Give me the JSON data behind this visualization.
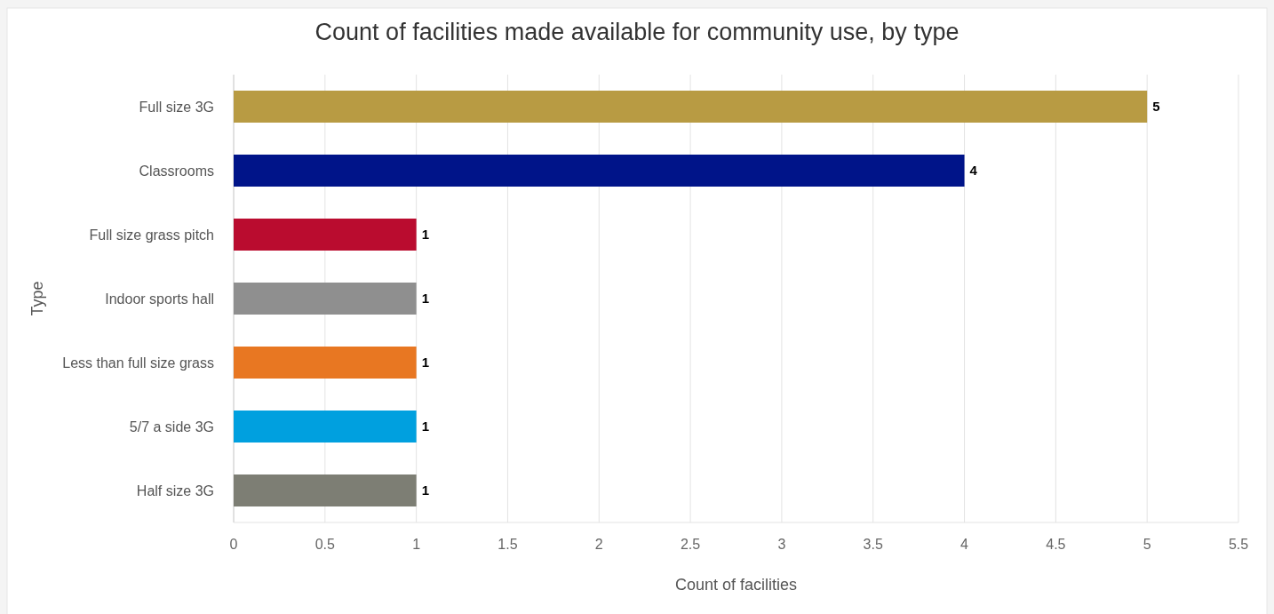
{
  "chart_data": {
    "type": "bar",
    "orientation": "horizontal",
    "title": "Count of facilities made available for community use, by type",
    "xlabel": "Count of facilities",
    "ylabel": "Type",
    "categories": [
      "Full size 3G",
      "Classrooms",
      "Full size grass pitch",
      "Indoor sports hall",
      "Less than full size grass",
      "5/7 a side 3G",
      "Half size 3G"
    ],
    "values": [
      5,
      4,
      1,
      1,
      1,
      1,
      1
    ],
    "colors": [
      "#b89b43",
      "#001489",
      "#ba0c2f",
      "#8f8f8f",
      "#e87722",
      "#00a0df",
      "#7d7e74"
    ],
    "xlim": [
      0,
      5.5
    ],
    "xticks": [
      0,
      0.5,
      1,
      1.5,
      2,
      2.5,
      3,
      3.5,
      4,
      4.5,
      5,
      5.5
    ],
    "grid": "x",
    "data_labels": true
  }
}
